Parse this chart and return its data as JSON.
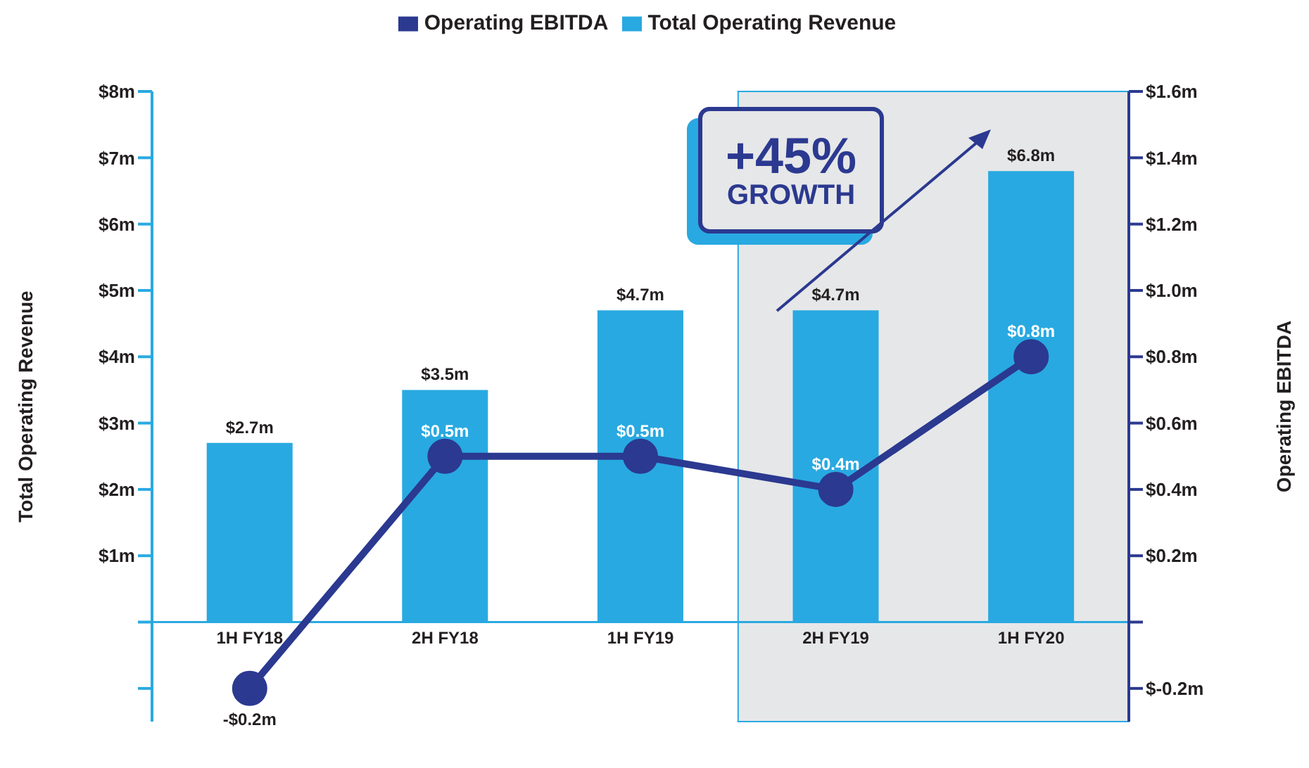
{
  "chart_data": {
    "type": "bar",
    "categories": [
      "1H FY18",
      "2H FY18",
      "1H FY19",
      "2H FY19",
      "1H FY20"
    ],
    "series": [
      {
        "name": "Operating EBITDA",
        "type": "line",
        "axis": "y2",
        "color": "#2b3990",
        "values": [
          -0.2,
          0.5,
          0.5,
          0.4,
          0.8
        ],
        "value_labels": [
          "-$0.2m",
          "$0.5m",
          "$0.5m",
          "$0.4m",
          "$0.8m"
        ]
      },
      {
        "name": "Total Operating Revenue",
        "color": "#29a9e1",
        "values": [
          2.7,
          3.5,
          4.7,
          4.7,
          6.8
        ],
        "value_labels": [
          "$2.7m",
          "$3.5m",
          "$4.7m",
          "$4.7m",
          "$6.8m"
        ]
      }
    ],
    "ylabel": "Total Operating Revenue",
    "y2label": "Operating EBITDA",
    "ylim": [
      -1.5,
      8
    ],
    "yticks": [
      {
        "value": -1,
        "label": null
      },
      {
        "value": 0,
        "label": null
      },
      {
        "value": 1,
        "label": "$1m"
      },
      {
        "value": 2,
        "label": "$2m"
      },
      {
        "value": 3,
        "label": "$3m"
      },
      {
        "value": 4,
        "label": "$4m"
      },
      {
        "value": 5,
        "label": "$5m"
      },
      {
        "value": 6,
        "label": "$6m"
      },
      {
        "value": 7,
        "label": "$7m"
      },
      {
        "value": 8,
        "label": "$8m"
      }
    ],
    "y2lim": [
      -0.3,
      1.6
    ],
    "y2ticks": [
      {
        "value": -0.2,
        "label": "$-0.2m"
      },
      {
        "value": 0,
        "label": null
      },
      {
        "value": 0.2,
        "label": "$0.2m"
      },
      {
        "value": 0.4,
        "label": "$0.4m"
      },
      {
        "value": 0.6,
        "label": "$0.6m"
      },
      {
        "value": 0.8,
        "label": "$0.8m"
      },
      {
        "value": 1,
        "label": "$1.0m"
      },
      {
        "value": 1.2,
        "label": "$1.2m"
      },
      {
        "value": 1.4,
        "label": "$1.4m"
      },
      {
        "value": 1.6,
        "label": "$1.6m"
      }
    ],
    "bands": [
      {
        "axis": "x",
        "from": "2H FY19",
        "to": "1H FY20",
        "color": "#e6e7e8"
      }
    ],
    "annotations": [
      "+45%",
      "GROWTH"
    ],
    "legend": "top",
    "marker": "circle"
  }
}
